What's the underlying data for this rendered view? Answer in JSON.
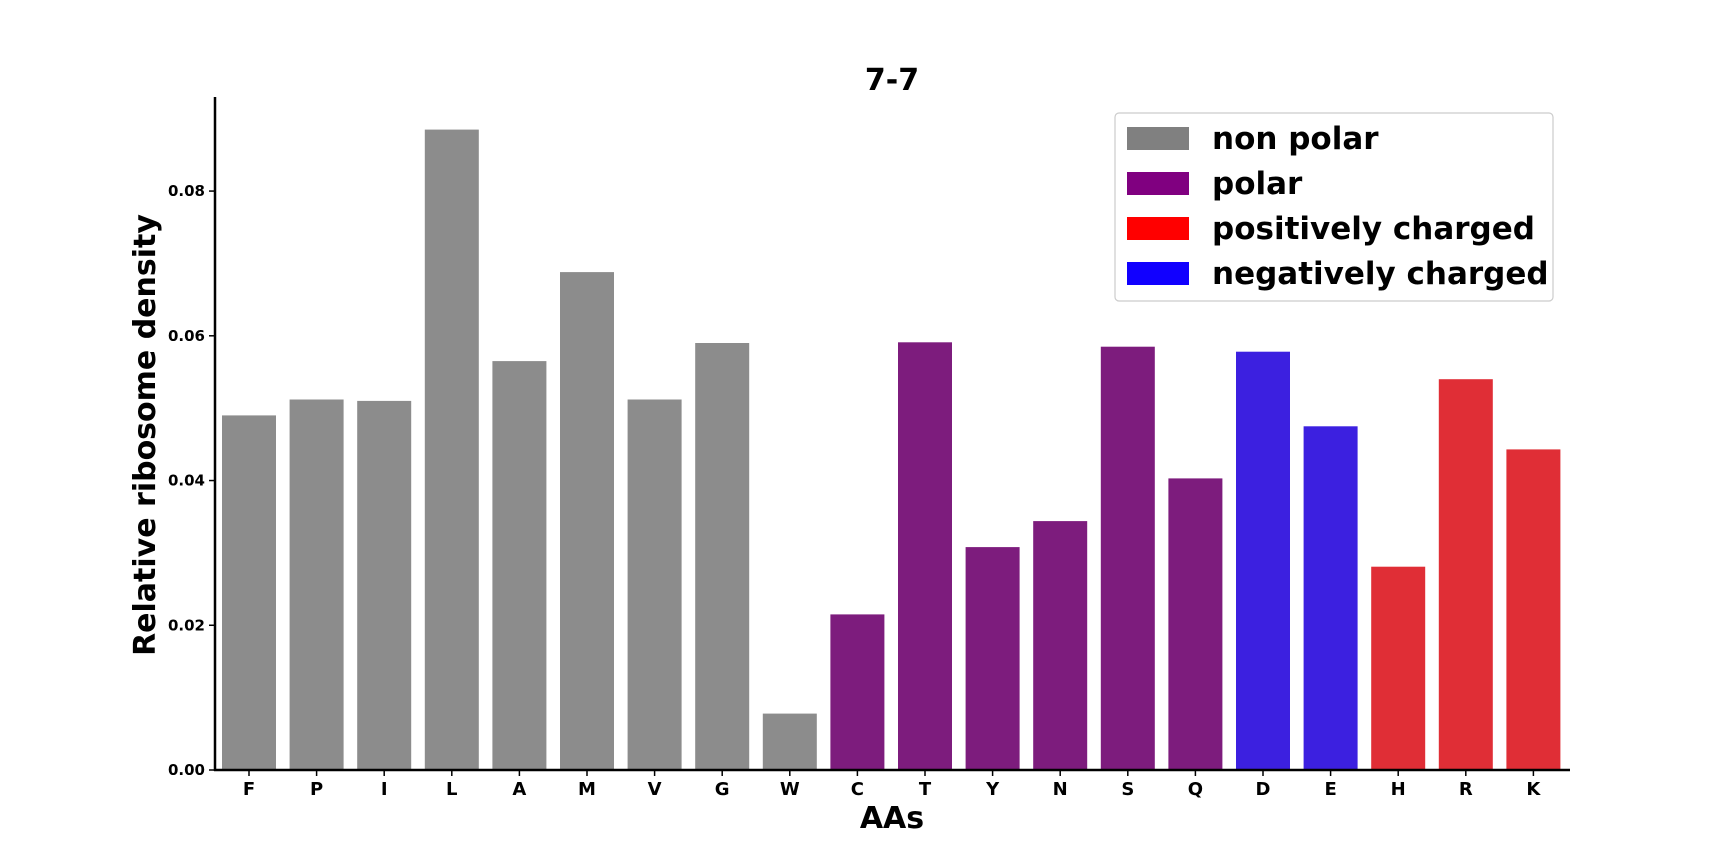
{
  "chart_data": {
    "type": "bar",
    "title": "7-7",
    "xlabel": "AAs",
    "ylabel": "Relative ribosome density",
    "ylim": [
      0,
      0.093
    ],
    "yticks": [
      "0.00",
      "0.02",
      "0.04",
      "0.06",
      "0.08"
    ],
    "grid": false,
    "legend_position": "top-right",
    "categories": [
      "F",
      "P",
      "I",
      "L",
      "A",
      "M",
      "V",
      "G",
      "W",
      "C",
      "T",
      "Y",
      "N",
      "S",
      "Q",
      "D",
      "E",
      "H",
      "R",
      "K"
    ],
    "values": [
      0.049,
      0.0512,
      0.051,
      0.0885,
      0.0565,
      0.0688,
      0.0512,
      0.059,
      0.0078,
      0.0215,
      0.0591,
      0.0308,
      0.0344,
      0.0585,
      0.0403,
      0.0578,
      0.0475,
      0.0281,
      0.054,
      0.0443
    ],
    "groups": [
      "non polar",
      "non polar",
      "non polar",
      "non polar",
      "non polar",
      "non polar",
      "non polar",
      "non polar",
      "non polar",
      "polar",
      "polar",
      "polar",
      "polar",
      "polar",
      "polar",
      "negatively charged",
      "negatively charged",
      "positively charged",
      "positively charged",
      "positively charged"
    ],
    "legend": [
      {
        "label": "non polar",
        "color": "#808080"
      },
      {
        "label": "polar",
        "color": "#800080"
      },
      {
        "label": "positively charged",
        "color": "#ff0000"
      },
      {
        "label": "negatively charged",
        "color": "#1100ff"
      }
    ],
    "bar_colors": {
      "non polar": "#8c8c8c",
      "polar": "#7d1c7d",
      "negatively charged": "#3c20e0",
      "positively charged": "#e02e36"
    }
  }
}
